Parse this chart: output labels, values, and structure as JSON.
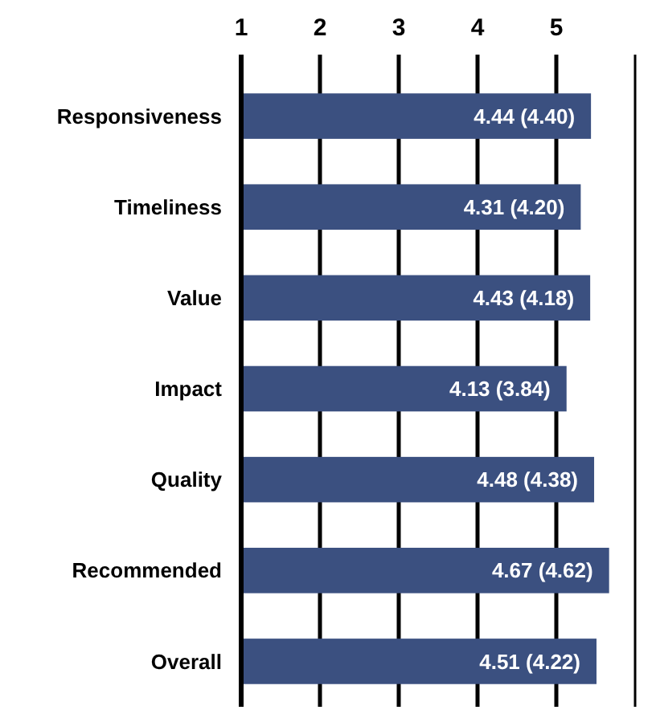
{
  "chart_data": {
    "type": "bar",
    "orientation": "horizontal",
    "categories": [
      "Responsiveness",
      "Timeliness",
      "Value",
      "Impact",
      "Quality",
      "Recommended",
      "Overall"
    ],
    "values": [
      4.44,
      4.31,
      4.43,
      4.13,
      4.48,
      4.67,
      4.51
    ],
    "value_labels": [
      "4.44 (4.40)",
      "4.31 (4.20)",
      "4.43 (4.18)",
      "4.13 (3.84)",
      "4.48 (4.38)",
      "4.67 (4.62)",
      "4.51 (4.22)"
    ],
    "color": "#3b5080",
    "base": [
      1,
      1,
      1,
      1,
      1,
      1,
      1
    ],
    "xlim": [
      1,
      6
    ],
    "xticks": [
      1,
      2,
      3,
      4,
      5
    ],
    "grid": "x"
  }
}
